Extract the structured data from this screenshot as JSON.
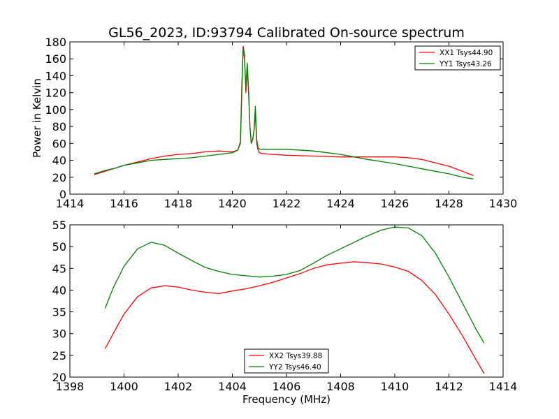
{
  "figure": {
    "title": "GL56_2023, ID:93794 Calibrated On-source spectrum"
  },
  "chart_data": [
    {
      "type": "line",
      "title": "GL56_2023, ID:93794 Calibrated On-source spectrum",
      "xlabel": "",
      "ylabel": "Power in Kelvin",
      "xlim": [
        1414,
        1430
      ],
      "ylim": [
        0,
        180
      ],
      "xticks": [
        1414,
        1416,
        1418,
        1420,
        1422,
        1424,
        1426,
        1428,
        1430
      ],
      "yticks": [
        0,
        20,
        40,
        60,
        80,
        100,
        120,
        140,
        160,
        180
      ],
      "legend_position": "top-right",
      "grid": false,
      "series": [
        {
          "name": "XX1 Tsys44.90",
          "color": "#ff0000",
          "x": [
            1414.9,
            1415.3,
            1415.7,
            1416.0,
            1416.5,
            1417.0,
            1417.5,
            1418.0,
            1418.5,
            1419.0,
            1419.5,
            1420.0,
            1420.2,
            1420.3,
            1420.35,
            1420.4,
            1420.45,
            1420.5,
            1420.55,
            1420.6,
            1420.65,
            1420.7,
            1420.75,
            1420.8,
            1420.85,
            1420.9,
            1420.95,
            1421.0,
            1421.1,
            1421.5,
            1422.0,
            1423.0,
            1424.0,
            1425.0,
            1426.0,
            1426.5,
            1427.0,
            1427.5,
            1428.0,
            1428.5,
            1428.9
          ],
          "y": [
            23,
            27,
            31,
            34,
            38,
            42,
            45,
            47,
            48,
            50,
            51,
            50,
            52,
            60,
            120,
            175,
            165,
            120,
            150,
            120,
            80,
            60,
            65,
            75,
            95,
            60,
            52,
            49,
            48,
            47,
            46,
            45,
            44,
            44,
            44,
            43,
            41,
            37,
            33,
            27,
            22
          ]
        },
        {
          "name": "YY1 Tsys43.26",
          "color": "#008000",
          "x": [
            1414.9,
            1415.3,
            1415.7,
            1416.0,
            1416.5,
            1417.0,
            1417.5,
            1418.0,
            1418.5,
            1419.0,
            1419.5,
            1420.0,
            1420.2,
            1420.3,
            1420.35,
            1420.4,
            1420.45,
            1420.5,
            1420.55,
            1420.6,
            1420.65,
            1420.7,
            1420.75,
            1420.8,
            1420.85,
            1420.9,
            1420.95,
            1421.0,
            1421.1,
            1421.5,
            1422.0,
            1423.0,
            1424.0,
            1425.0,
            1426.0,
            1426.5,
            1427.0,
            1427.5,
            1428.0,
            1428.5,
            1428.9
          ],
          "y": [
            24,
            28,
            31,
            34,
            37,
            40,
            41,
            42,
            43,
            45,
            47,
            49,
            52,
            62,
            130,
            172,
            160,
            125,
            155,
            125,
            80,
            60,
            64,
            75,
            104,
            65,
            55,
            53,
            53,
            53,
            53,
            51,
            47,
            41,
            36,
            33,
            30,
            27,
            24,
            20,
            18
          ]
        }
      ]
    },
    {
      "type": "line",
      "title": "",
      "xlabel": "Frequency (MHz)",
      "ylabel": "",
      "xlim": [
        1398,
        1414
      ],
      "ylim": [
        20,
        55
      ],
      "xticks": [
        1398,
        1400,
        1402,
        1404,
        1406,
        1408,
        1410,
        1412,
        1414
      ],
      "yticks": [
        20,
        25,
        30,
        35,
        40,
        45,
        50,
        55
      ],
      "legend_position": "lower-center",
      "grid": false,
      "series": [
        {
          "name": "XX2 Tsys39.88",
          "color": "#ff0000",
          "x": [
            1399.3,
            1399.6,
            1400.0,
            1400.5,
            1401.0,
            1401.5,
            1402.0,
            1402.5,
            1403.0,
            1403.5,
            1404.0,
            1404.5,
            1405.0,
            1405.5,
            1406.0,
            1406.5,
            1407.0,
            1407.5,
            1408.0,
            1408.5,
            1409.0,
            1409.5,
            1410.0,
            1410.5,
            1411.0,
            1411.5,
            1412.0,
            1412.5,
            1413.0,
            1413.3
          ],
          "y": [
            26.5,
            30,
            34.5,
            38.5,
            40.5,
            41,
            40.7,
            40,
            39.5,
            39.2,
            39.8,
            40.3,
            41,
            41.8,
            42.8,
            43.8,
            45,
            45.8,
            46.2,
            46.5,
            46.3,
            46,
            45.3,
            44.3,
            42.2,
            39,
            34.5,
            29.5,
            24,
            20.8
          ]
        },
        {
          "name": "YY2 Tsys46.40",
          "color": "#008000",
          "x": [
            1399.3,
            1399.6,
            1400.0,
            1400.5,
            1401.0,
            1401.5,
            1402.0,
            1402.5,
            1403.0,
            1403.5,
            1404.0,
            1404.5,
            1405.0,
            1405.5,
            1406.0,
            1406.5,
            1407.0,
            1407.5,
            1408.0,
            1408.5,
            1409.0,
            1409.5,
            1410.0,
            1410.5,
            1411.0,
            1411.5,
            1412.0,
            1412.5,
            1413.0,
            1413.3
          ],
          "y": [
            35.8,
            40.5,
            45.5,
            49.5,
            51,
            50.3,
            48.5,
            46.8,
            45.2,
            44.3,
            43.6,
            43.3,
            43,
            43.2,
            43.6,
            44.5,
            46.2,
            48,
            49.5,
            51,
            52.5,
            53.8,
            54.5,
            54.3,
            52.5,
            48.5,
            43,
            37,
            31,
            27.8
          ]
        }
      ]
    }
  ]
}
